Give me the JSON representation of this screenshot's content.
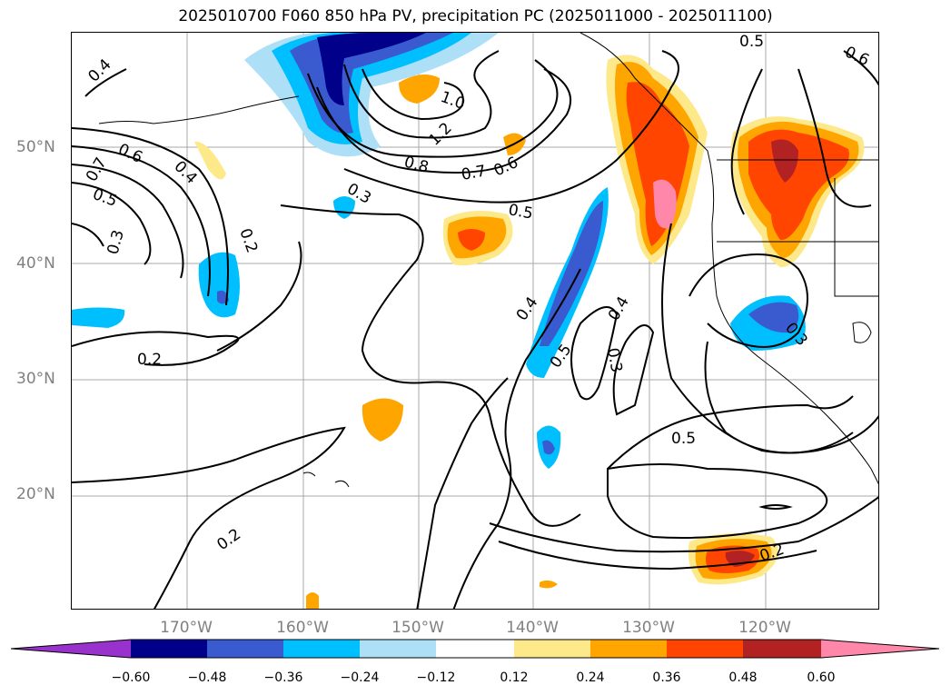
{
  "title": "2025010700 F060 850 hPa PV, precipitation PC (2025011000 - 2025011100)",
  "lat_labels": [
    "50°N",
    "40°N",
    "30°N",
    "20°N"
  ],
  "lon_labels": [
    "170°W",
    "160°W",
    "150°W",
    "140°W",
    "130°W",
    "120°W"
  ],
  "contour_labels": [
    "0.4",
    "1.0",
    "1.2",
    "0.8",
    "0.7",
    "0.6",
    "0.5",
    "0.6",
    "0.7",
    "0.5",
    "0.4",
    "0.3",
    "0.2",
    "0.3",
    "0.2",
    "0.4",
    "0.5",
    "0.4",
    "0.3",
    "0.5",
    "0.2",
    "0.2",
    "0.3",
    "0.5",
    "0.6"
  ],
  "colorbar": {
    "labels": [
      "−0.60",
      "−0.48",
      "−0.36",
      "−0.24",
      "−0.12",
      "0.12",
      "0.24",
      "0.36",
      "0.48",
      "0.60"
    ],
    "colors": [
      "#9932CC",
      "#00008B",
      "#3A5BCF",
      "#00BFFF",
      "#ADDFF7",
      "#FFFFFF",
      "#FDE98A",
      "#FFA500",
      "#FF4500",
      "#B22222",
      "#FF88AA"
    ]
  }
}
